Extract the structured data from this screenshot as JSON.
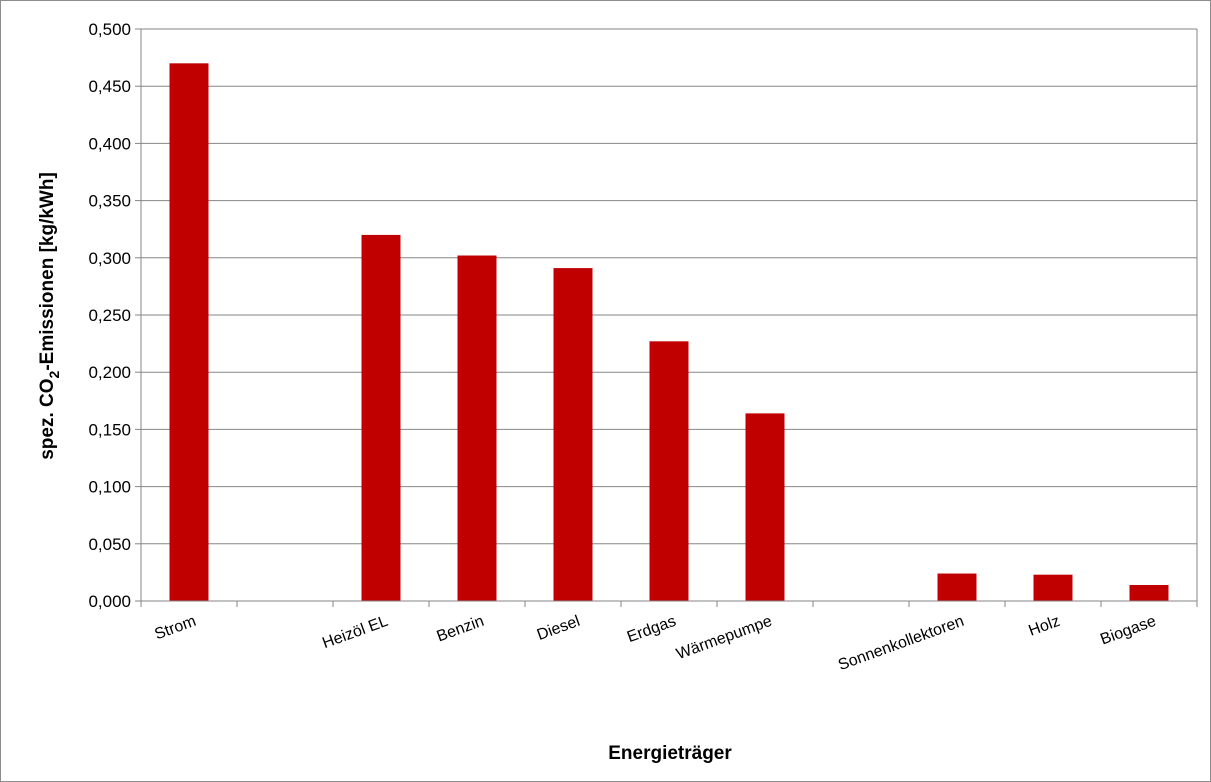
{
  "chart_data": {
    "type": "bar",
    "categories": [
      "Strom",
      "",
      "Heizöl EL",
      "Benzin",
      "Diesel",
      "Erdgas",
      "Wärmepumpe",
      "",
      "Sonnenkollektoren",
      "Holz",
      "Biogase"
    ],
    "values": [
      0.47,
      null,
      0.32,
      0.302,
      0.291,
      0.227,
      0.164,
      null,
      0.024,
      0.023,
      0.014
    ],
    "xlabel": "Energieträger",
    "ylabel": {
      "prefix": "spez. CO",
      "subscript": "2",
      "suffix": "-Emissionen [kg/kWh]"
    },
    "ylim": [
      0,
      0.5
    ],
    "yticks": [
      "0,000",
      "0,050",
      "0,100",
      "0,150",
      "0,200",
      "0,250",
      "0,300",
      "0,350",
      "0,400",
      "0,450",
      "0,500"
    ],
    "grid": true,
    "legend": "none",
    "colors": {
      "bar": "#c00000",
      "grid": "#868686",
      "axis": "#868686"
    }
  }
}
